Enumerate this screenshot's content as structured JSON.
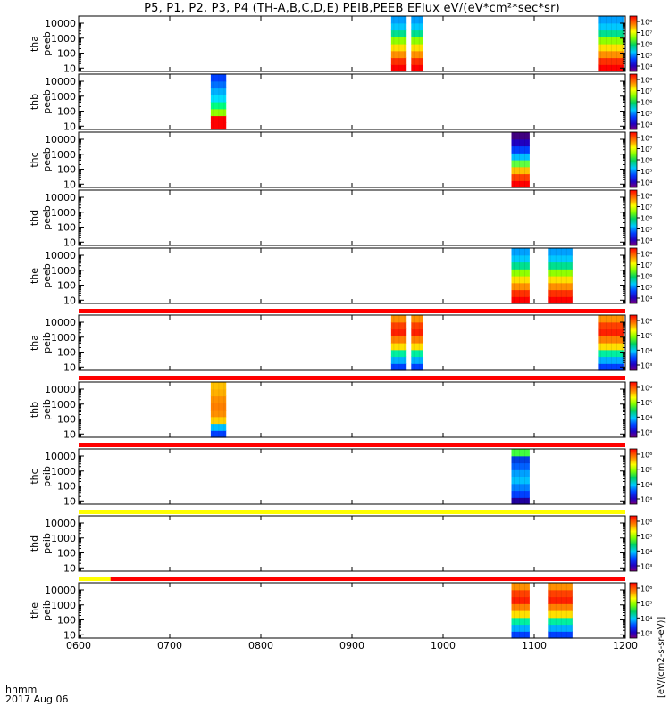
{
  "title": "P5, P1, P2, P3, P4 (TH-A,B,C,D,E) PEIB,PEEB EFlux eV/(eV*cm²*sec*sr)",
  "colorbar_units": "[eV/(cm2-s-sr-eV)]",
  "footer": {
    "time_label": "hhmm",
    "date_label": "2017 Aug 06"
  },
  "colors": {
    "red_bar": "#ff0000",
    "yellow_bar": "#ffff00"
  },
  "chart_data": {
    "type": "heatmap",
    "x_ticks": [
      "0600",
      "0700",
      "0800",
      "0900",
      "1000",
      "1100",
      "1200"
    ],
    "x_range_hours": [
      6.0,
      12.0
    ],
    "y_ticks": [
      "10",
      "100",
      "1000",
      "10000"
    ],
    "y_scale": "log",
    "panels": [
      {
        "ylabel_1": "tha",
        "ylabel_2": "peeb",
        "cbar_ticks": [
          "10⁴",
          "10⁵",
          "10⁶",
          "10⁷",
          "10⁸"
        ],
        "blocks": [
          {
            "x0": 9.43,
            "x1": 9.6,
            "profile": "peeb"
          },
          {
            "x0": 9.65,
            "x1": 9.78,
            "profile": "peeb"
          },
          {
            "x0": 11.7,
            "x1": 11.98,
            "profile": "peeb"
          }
        ]
      },
      {
        "ylabel_1": "thb",
        "ylabel_2": "peeb",
        "cbar_ticks": [
          "10⁴",
          "10⁵",
          "10⁶",
          "10⁷",
          "10⁸"
        ],
        "blocks": [
          {
            "x0": 7.45,
            "x1": 7.62,
            "profile": "peeb_low"
          }
        ]
      },
      {
        "ylabel_1": "thc",
        "ylabel_2": "peeb",
        "cbar_ticks": [
          "10⁴",
          "10⁵",
          "10⁶",
          "10⁷",
          "10⁸"
        ],
        "blocks": [
          {
            "x0": 10.75,
            "x1": 10.95,
            "profile": "peeb_dark"
          }
        ]
      },
      {
        "ylabel_1": "thd",
        "ylabel_2": "peeb",
        "cbar_ticks": [
          "10⁴",
          "10⁵",
          "10⁶",
          "10⁷",
          "10⁸"
        ],
        "blocks": []
      },
      {
        "ylabel_1": "the",
        "ylabel_2": "peeb",
        "cbar_ticks": [
          "10⁴",
          "10⁵",
          "10⁶",
          "10⁷",
          "10⁸"
        ],
        "blocks": [
          {
            "x0": 10.75,
            "x1": 10.95,
            "profile": "peeb"
          },
          {
            "x0": 11.15,
            "x1": 11.42,
            "profile": "peeb"
          }
        ]
      },
      {
        "ylabel_1": "tha",
        "ylabel_2": "peib",
        "cbar_ticks": [
          "10³",
          "10⁴",
          "10⁵",
          "10⁶"
        ],
        "blocks": [
          {
            "x0": 9.43,
            "x1": 9.6,
            "profile": "peib"
          },
          {
            "x0": 9.65,
            "x1": 9.78,
            "profile": "peib"
          },
          {
            "x0": 11.7,
            "x1": 11.98,
            "profile": "peib"
          }
        ]
      },
      {
        "ylabel_1": "thb",
        "ylabel_2": "peib",
        "cbar_ticks": [
          "10³",
          "10⁴",
          "10⁵",
          "10⁶"
        ],
        "blocks": [
          {
            "x0": 7.45,
            "x1": 7.62,
            "profile": "peib_orange"
          }
        ]
      },
      {
        "ylabel_1": "thc",
        "ylabel_2": "peib",
        "cbar_ticks": [
          "10³",
          "10⁴",
          "10⁵",
          "10⁶"
        ],
        "blocks": [
          {
            "x0": 10.75,
            "x1": 10.95,
            "profile": "peib_blue"
          }
        ]
      },
      {
        "ylabel_1": "thd",
        "ylabel_2": "peib",
        "cbar_ticks": [
          "10³",
          "10⁴",
          "10⁵",
          "10⁶"
        ],
        "blocks": []
      },
      {
        "ylabel_1": "the",
        "ylabel_2": "peib",
        "cbar_ticks": [
          "10³",
          "10⁴",
          "10⁵",
          "10⁶"
        ],
        "blocks": [
          {
            "x0": 10.75,
            "x1": 10.95,
            "profile": "peib"
          },
          {
            "x0": 11.15,
            "x1": 11.42,
            "profile": "peib"
          }
        ]
      }
    ],
    "status_bars": [
      {
        "after_panel": 5,
        "segments": [
          {
            "x0": 6.0,
            "x1": 12.0,
            "color": "red"
          }
        ]
      },
      {
        "after_panel": 6,
        "segments": [
          {
            "x0": 6.0,
            "x1": 12.0,
            "color": "red"
          }
        ]
      },
      {
        "after_panel": 7,
        "segments": [
          {
            "x0": 6.0,
            "x1": 12.0,
            "color": "red"
          }
        ]
      },
      {
        "after_panel": 8,
        "segments": [
          {
            "x0": 6.0,
            "x1": 12.0,
            "color": "yellow"
          }
        ]
      },
      {
        "after_panel": 9,
        "segments": [
          {
            "x0": 6.0,
            "x1": 6.35,
            "color": "yellow"
          },
          {
            "x0": 6.35,
            "x1": 12.0,
            "color": "red"
          }
        ]
      }
    ]
  }
}
